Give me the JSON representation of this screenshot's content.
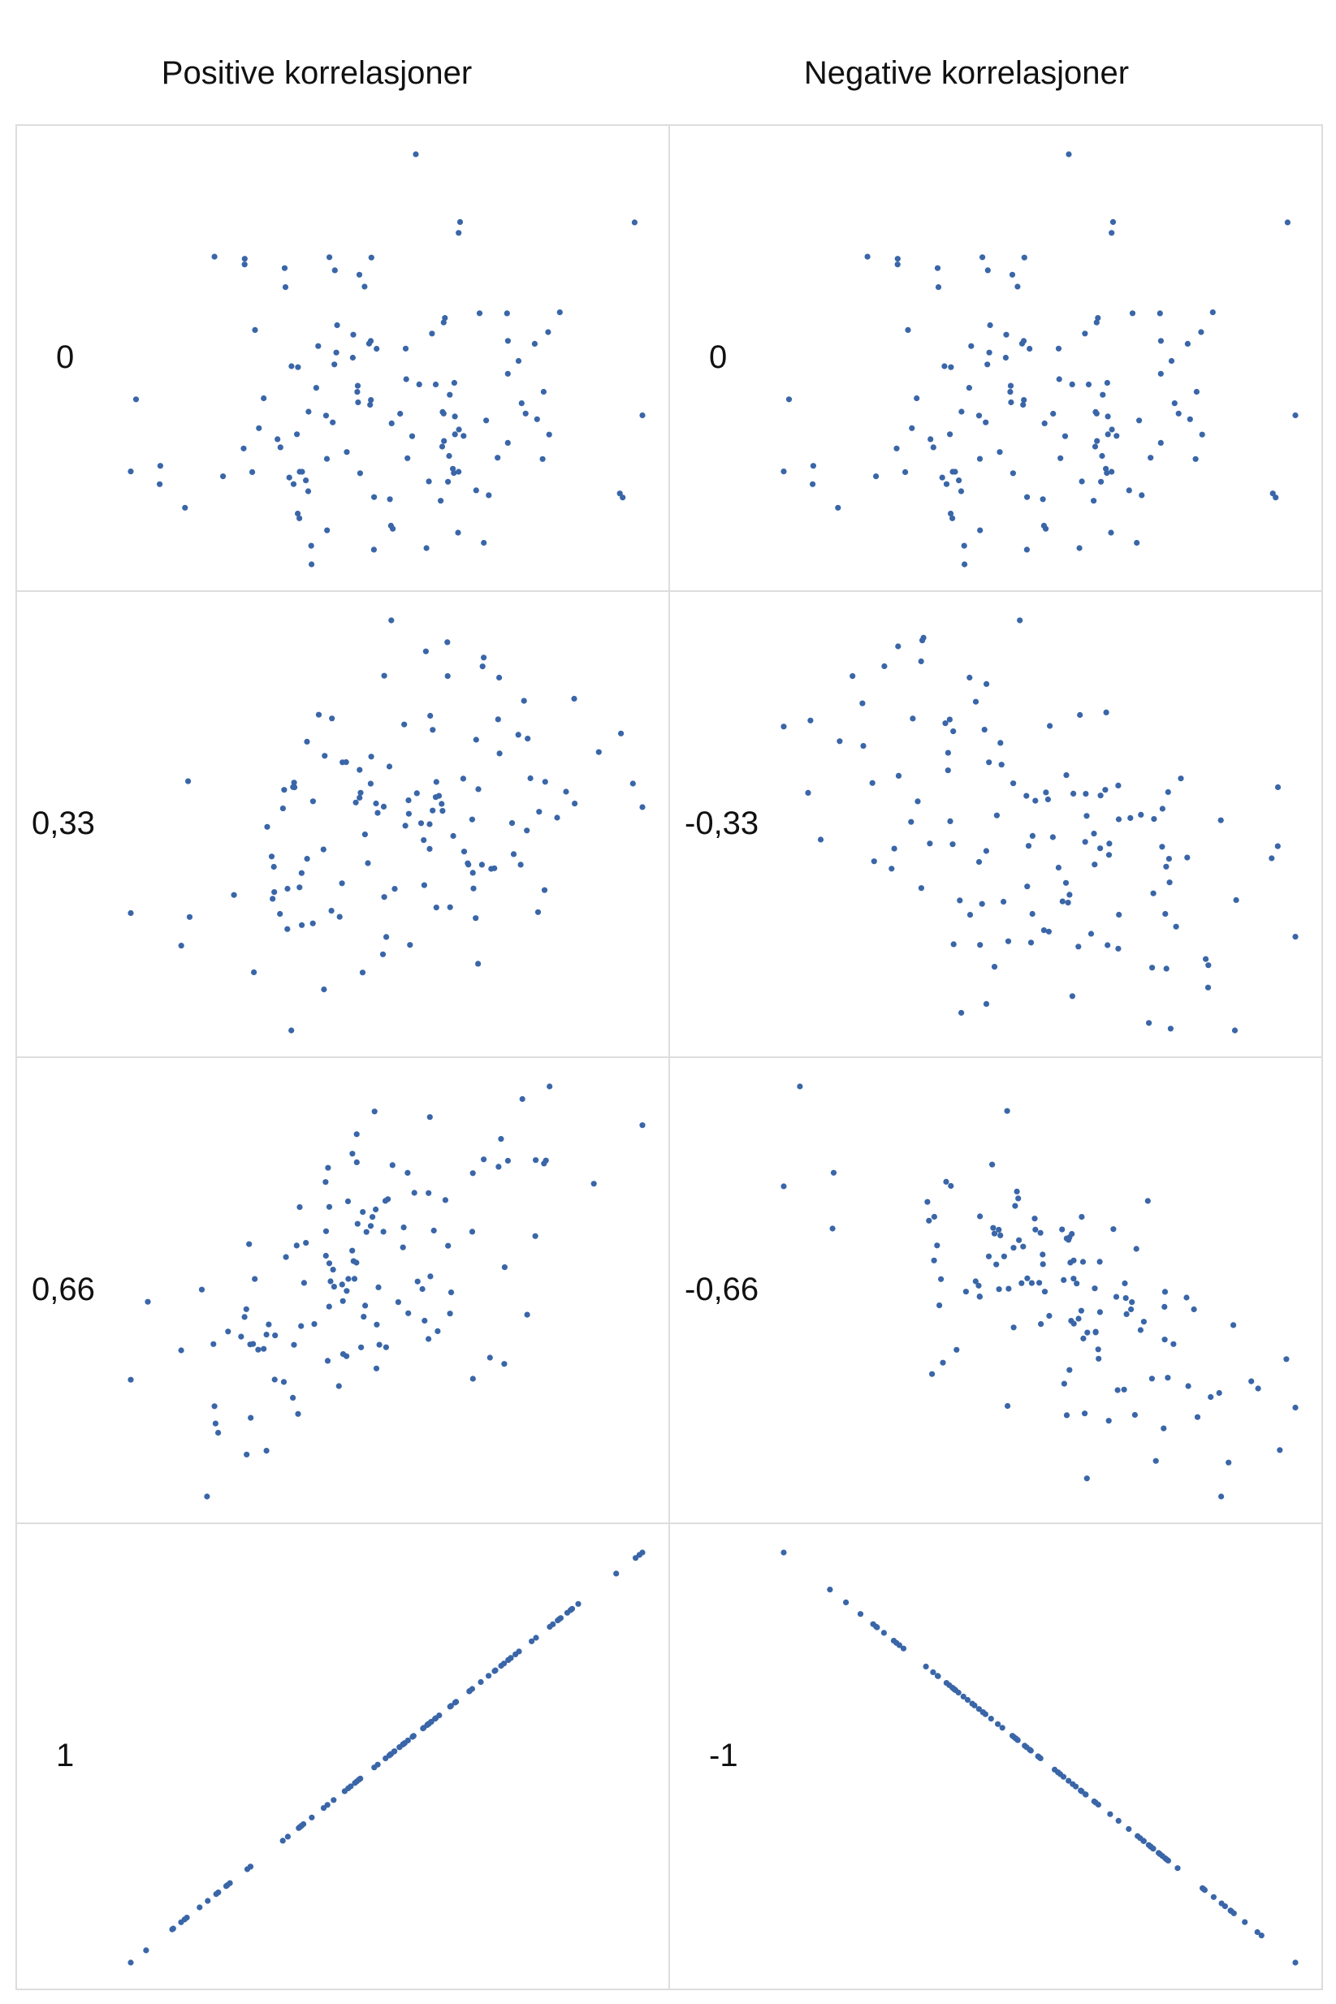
{
  "headers": {
    "left": "Positive korrelasjoner",
    "right": "Negative korrelasjoner"
  },
  "colors": {
    "point": "#3a66a8",
    "border": "#dddddd"
  },
  "chart_data": [
    {
      "type": "scatter",
      "label": "0",
      "correlation": 0,
      "seed": 11,
      "n": 120,
      "xlim": [
        0,
        1
      ],
      "ylim": [
        0,
        1
      ]
    },
    {
      "type": "scatter",
      "label": "0",
      "correlation": 0,
      "seed": 11,
      "n": 120,
      "xlim": [
        0,
        1
      ],
      "ylim": [
        0,
        1
      ]
    },
    {
      "type": "scatter",
      "label": "0,33",
      "correlation": 0.33,
      "seed": 23,
      "n": 120,
      "xlim": [
        0,
        1
      ],
      "ylim": [
        0,
        1
      ]
    },
    {
      "type": "scatter",
      "label": "-0,33",
      "correlation": -0.33,
      "seed": 37,
      "n": 120,
      "xlim": [
        0,
        1
      ],
      "ylim": [
        0,
        1
      ]
    },
    {
      "type": "scatter",
      "label": "0,66",
      "correlation": 0.66,
      "seed": 41,
      "n": 120,
      "xlim": [
        0,
        1
      ],
      "ylim": [
        0,
        1
      ]
    },
    {
      "type": "scatter",
      "label": "-0,66",
      "correlation": -0.66,
      "seed": 53,
      "n": 120,
      "xlim": [
        0,
        1
      ],
      "ylim": [
        0,
        1
      ]
    },
    {
      "type": "scatter",
      "label": "1",
      "correlation": 1,
      "seed": 61,
      "n": 100,
      "xlim": [
        0,
        1
      ],
      "ylim": [
        0,
        1
      ]
    },
    {
      "type": "scatter",
      "label": "-1",
      "correlation": -1,
      "seed": 71,
      "n": 100,
      "xlim": [
        0,
        1
      ],
      "ylim": [
        0,
        1
      ]
    }
  ]
}
